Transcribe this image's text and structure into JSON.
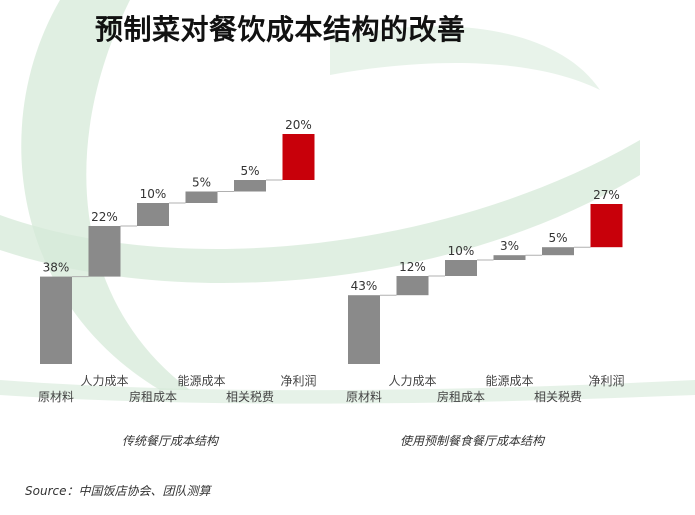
{
  "title": "预制菜对餐饮成本结构的改善",
  "source": "Source：中国饭店协会、团队测算",
  "colors": {
    "bar": "#8a8a8a",
    "highlight": "#c8000a",
    "connector": "#b0b0b0",
    "bg_swoosh": "#d6ead8"
  },
  "chart_data": [
    {
      "type": "bar",
      "subtype": "waterfall",
      "title": "传统餐厅成本结构",
      "categories": [
        "原材料",
        "人力成本",
        "房租成本",
        "能源成本",
        "相关税费",
        "净利润"
      ],
      "values": [
        38,
        22,
        10,
        5,
        5,
        20
      ],
      "labels": [
        "38%",
        "22%",
        "10%",
        "5%",
        "5%",
        "20%"
      ],
      "highlight_index": 5,
      "ylim": [
        0,
        100
      ]
    },
    {
      "type": "bar",
      "subtype": "waterfall",
      "title": "使用预制餐食餐厅成本结构",
      "categories": [
        "原材料",
        "人力成本",
        "房租成本",
        "能源成本",
        "相关税费",
        "净利润"
      ],
      "values": [
        43,
        12,
        10,
        3,
        5,
        27
      ],
      "labels": [
        "43%",
        "12%",
        "10%",
        "3%",
        "5%",
        "27%"
      ],
      "highlight_index": 5,
      "ylim": [
        0,
        100
      ]
    }
  ]
}
